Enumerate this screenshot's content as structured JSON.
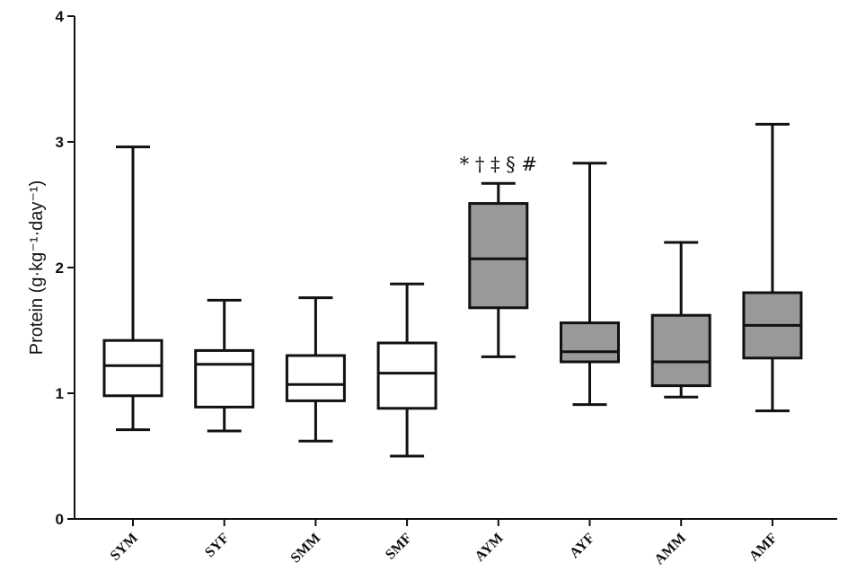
{
  "chart_data": {
    "type": "box",
    "ylabel": "Protein (g·kg⁻¹·day⁻¹)",
    "ylim": [
      0,
      4
    ],
    "yticks": [
      0,
      1,
      2,
      3,
      4
    ],
    "categories": [
      "SYM",
      "SYF",
      "SMM",
      "SMF",
      "AYM",
      "AYF",
      "AMM",
      "AMF"
    ],
    "boxes": [
      {
        "min": 0.71,
        "q1": 0.98,
        "median": 1.22,
        "q3": 1.42,
        "max": 2.96,
        "fill": "#ffffff"
      },
      {
        "min": 0.7,
        "q1": 0.89,
        "median": 1.23,
        "q3": 1.34,
        "max": 1.74,
        "fill": "#ffffff"
      },
      {
        "min": 0.62,
        "q1": 0.94,
        "median": 1.07,
        "q3": 1.3,
        "max": 1.76,
        "fill": "#ffffff"
      },
      {
        "min": 0.5,
        "q1": 0.88,
        "median": 1.16,
        "q3": 1.4,
        "max": 1.87,
        "fill": "#ffffff"
      },
      {
        "min": 1.29,
        "q1": 1.68,
        "median": 2.07,
        "q3": 2.51,
        "max": 2.67,
        "fill": "#999999"
      },
      {
        "min": 0.91,
        "q1": 1.25,
        "median": 1.33,
        "q3": 1.56,
        "max": 2.83,
        "fill": "#999999"
      },
      {
        "min": 0.97,
        "q1": 1.06,
        "median": 1.25,
        "q3": 1.62,
        "max": 2.2,
        "fill": "#999999"
      },
      {
        "min": 0.86,
        "q1": 1.28,
        "median": 1.54,
        "q3": 1.8,
        "max": 3.14,
        "fill": "#999999"
      }
    ],
    "annotations": [
      {
        "category": "AYM",
        "text": "* † ‡ § #"
      }
    ],
    "grid": false,
    "legend": "none"
  }
}
